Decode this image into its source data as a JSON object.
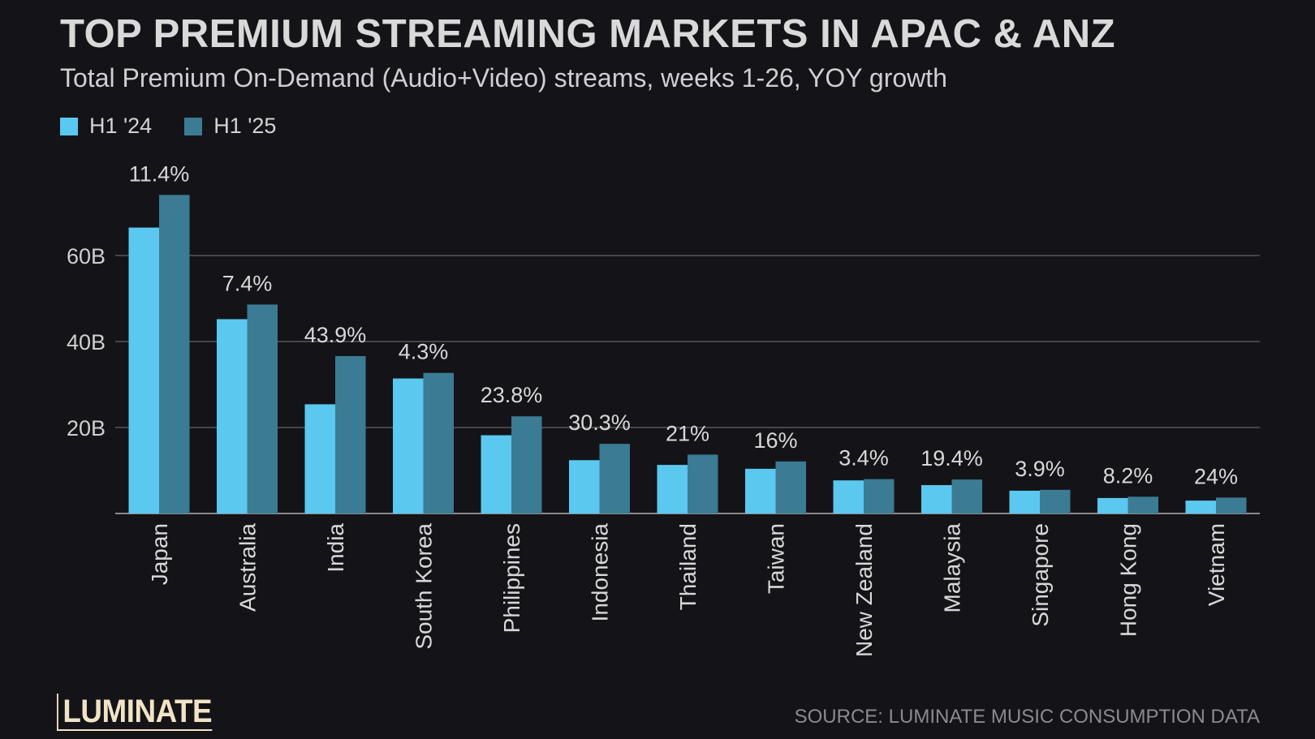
{
  "title": "TOP PREMIUM STREAMING MARKETS IN APAC & ANZ",
  "subtitle": "Total Premium On-Demand (Audio+Video) streams, weeks 1-26, YOY growth",
  "logo": "LUMINATE",
  "source": "SOURCE: LUMINATE MUSIC CONSUMPTION DATA",
  "colors": {
    "background": "#141418",
    "h1_24": "#5bc8ef",
    "h1_25": "#3b7b94",
    "grid": "#55565a"
  },
  "chart_data": {
    "type": "bar",
    "title": "TOP PREMIUM STREAMING MARKETS IN APAC & ANZ",
    "subtitle": "Total Premium On-Demand (Audio+Video) streams, weeks 1-26, YOY growth",
    "categories": [
      "Japan",
      "Australia",
      "India",
      "South Korea",
      "Philippines",
      "Indonesia",
      "Thailand",
      "Taiwan",
      "New Zealand",
      "Malaysia",
      "Singapore",
      "Hong Kong",
      "Vietnam"
    ],
    "series": [
      {
        "name": "H1 '24",
        "color": "#5bc8ef",
        "values": [
          66.5,
          45.2,
          25.4,
          31.4,
          18.2,
          12.4,
          11.3,
          10.4,
          7.7,
          6.6,
          5.3,
          3.6,
          3.0
        ]
      },
      {
        "name": "H1 '25",
        "color": "#3b7b94",
        "values": [
          74.1,
          48.6,
          36.6,
          32.7,
          22.6,
          16.2,
          13.7,
          12.1,
          8.0,
          7.9,
          5.5,
          3.9,
          3.7
        ]
      }
    ],
    "data_labels": [
      "11.4%",
      "7.4%",
      "43.9%",
      "4.3%",
      "23.8%",
      "30.3%",
      "21%",
      "16%",
      "3.4%",
      "19.4%",
      "3.9%",
      "8.2%",
      "24%"
    ],
    "yticks": [
      {
        "value": 20,
        "label": "20B"
      },
      {
        "value": 40,
        "label": "40B"
      },
      {
        "value": 60,
        "label": "60B"
      }
    ],
    "ylim": [
      0,
      80
    ],
    "xlabel": "",
    "ylabel": "",
    "grid": true,
    "legend": "top-left"
  }
}
